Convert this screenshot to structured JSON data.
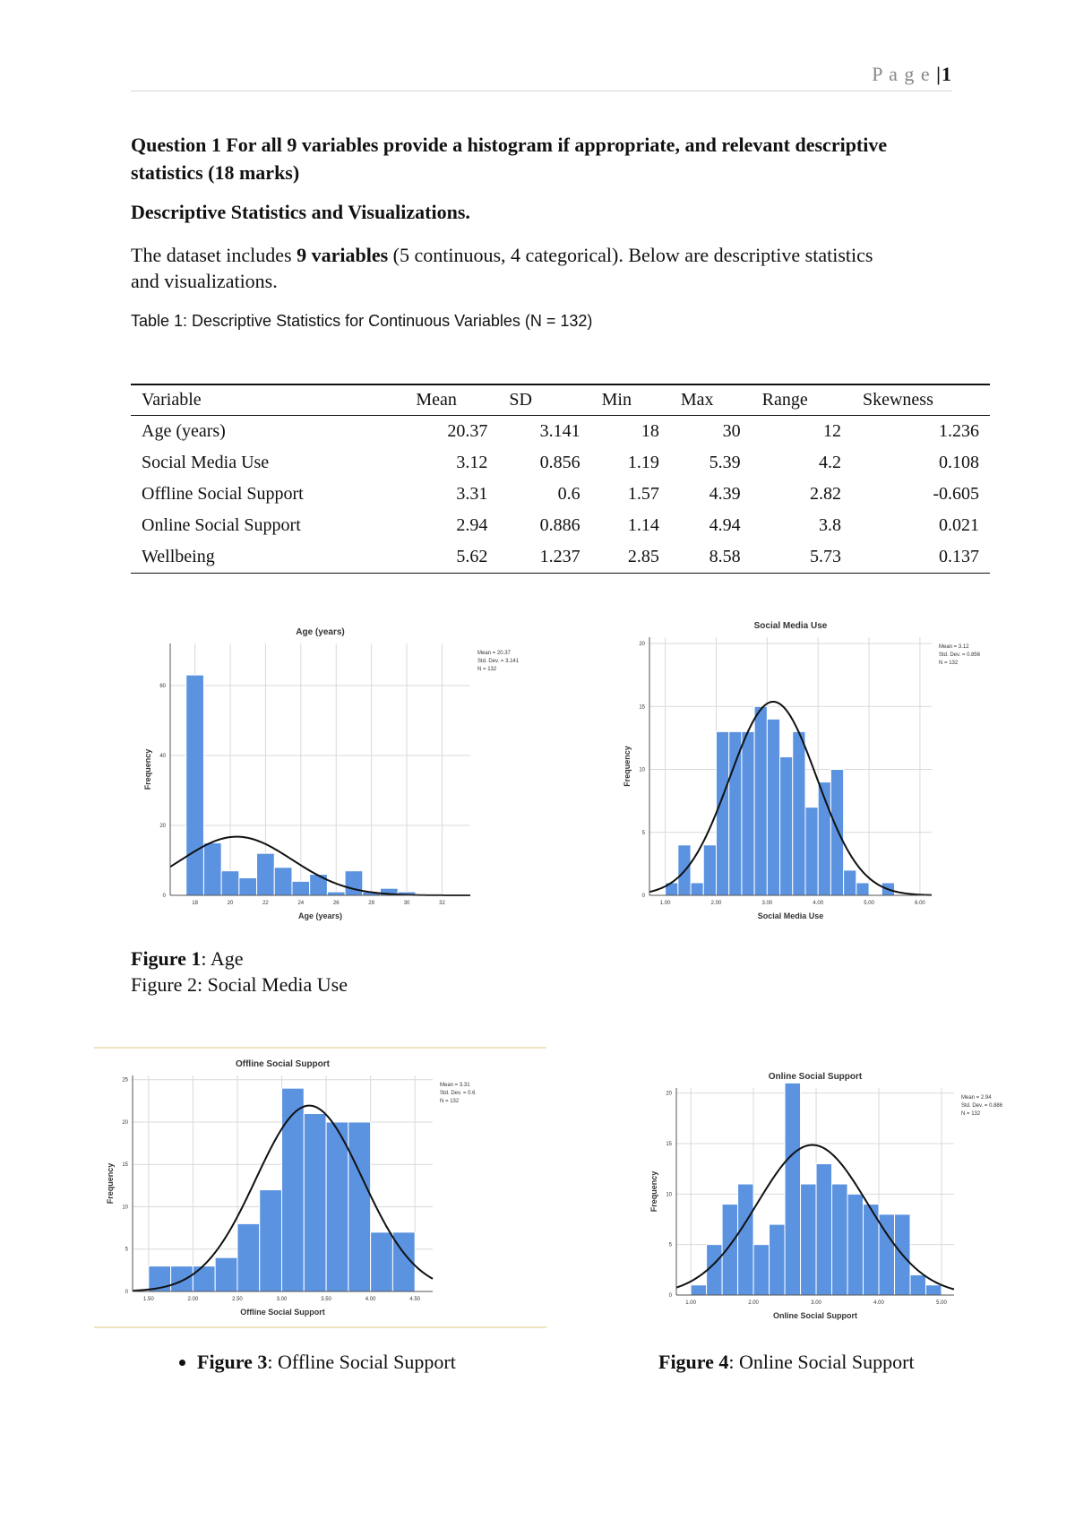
{
  "header": {
    "text": "P a g e",
    "separator": "|",
    "number": "1"
  },
  "question": "Question 1 For all 9 variables provide a histogram if appropriate, and relevant descriptive statistics (18 marks)",
  "heading": "Descriptive Statistics and Visualizations.",
  "paragraph": [
    "The dataset includes ",
    "9 variables",
    " (5 continuous, 4 categorical). Below are descriptive statistics and visualizations."
  ],
  "table": {
    "caption": "Table 1: Descriptive Statistics for Continuous Variables (N = 132)",
    "columns": [
      "Variable",
      "Mean",
      "SD",
      "Min",
      "Max",
      "Range",
      "Skewness"
    ],
    "rows": [
      [
        "Age (years)",
        20.37,
        3.141,
        18,
        30,
        12,
        1.236
      ],
      [
        "Social Media Use",
        3.12,
        0.856,
        1.19,
        5.39,
        4.2,
        0.108
      ],
      [
        "Offline Social Support",
        3.31,
        0.6,
        1.57,
        4.39,
        2.82,
        -0.605
      ],
      [
        "Online Social Support",
        2.94,
        0.886,
        1.14,
        4.94,
        3.8,
        0.021
      ],
      [
        "Wellbeing",
        5.62,
        1.237,
        2.85,
        8.58,
        5.73,
        0.137
      ]
    ]
  },
  "figures": [
    {
      "type": "histogram",
      "title": "Age (years)",
      "xlabel": "Age (years)",
      "ylabel": "Frequency",
      "color": "#5b93e0",
      "bins": [
        17.5,
        18.5,
        19.5,
        20.5,
        21.5,
        22.5,
        23.5,
        24.5,
        25.5,
        26.5,
        27.5,
        28.5,
        29.5,
        30.5
      ],
      "counts": [
        63,
        15,
        7,
        5,
        12,
        8,
        4,
        6,
        1,
        7,
        1,
        2,
        1
      ],
      "xlim": [
        16.6,
        33.6
      ],
      "ylim": [
        0,
        72
      ],
      "xticks": [
        18,
        20,
        22,
        24,
        26,
        28,
        30,
        32
      ],
      "yticks": [
        0,
        20,
        40,
        60
      ],
      "stats": [
        {
          "label": "Mean =",
          "value": 20.37
        },
        {
          "label": "Std. Dev. =",
          "value": 3.141
        },
        {
          "label": "N =",
          "value": 132
        }
      ]
    },
    {
      "type": "histogram",
      "title": "Social Media Use",
      "xlabel": "Social Media Use",
      "ylabel": "Frequency",
      "color": "#5b93e0",
      "bins": [
        1.0,
        1.25,
        1.5,
        1.75,
        2.0,
        2.25,
        2.5,
        2.75,
        3.0,
        3.25,
        3.5,
        3.75,
        4.0,
        4.25,
        4.5,
        4.75,
        5.0,
        5.25,
        5.5
      ],
      "counts": [
        1,
        4,
        1,
        4,
        13,
        13,
        13,
        15,
        14,
        11,
        13,
        7,
        9,
        10,
        2,
        1,
        0,
        1
      ],
      "xlim": [
        0.69,
        6.23
      ],
      "ylim": [
        0,
        20.5
      ],
      "xticks": [
        {
          "value": 1,
          "label": "1.00"
        },
        {
          "value": 2,
          "label": "2.00"
        },
        {
          "value": 3,
          "label": "3.00"
        },
        {
          "value": 4,
          "label": "4.00"
        },
        {
          "value": 5,
          "label": "5.00"
        },
        {
          "value": 6,
          "label": "6.00"
        }
      ],
      "yticks": [
        0,
        5,
        10,
        15,
        20
      ],
      "stats": [
        {
          "label": "Mean =",
          "value": 3.12
        },
        {
          "label": "Std. Dev. =",
          "value": 0.856
        },
        {
          "label": "N =",
          "value": 132
        }
      ]
    },
    {
      "type": "histogram",
      "title": "Offline Social Support",
      "xlabel": "Offline Social Support",
      "ylabel": "Frequency",
      "color": "#5b93e0",
      "bins": [
        1.5,
        1.75,
        2.0,
        2.25,
        2.5,
        2.75,
        3.0,
        3.25,
        3.5,
        3.75,
        4.0,
        4.25,
        4.5
      ],
      "counts": [
        3,
        3,
        3,
        4,
        8,
        12,
        24,
        21,
        20,
        20,
        7,
        7
      ],
      "xlim": [
        1.32,
        4.7
      ],
      "ylim": [
        0,
        25.5
      ],
      "xticks": [
        {
          "value": 1.5,
          "label": "1.50"
        },
        {
          "value": 2,
          "label": "2.00"
        },
        {
          "value": 2.5,
          "label": "2.50"
        },
        {
          "value": 3,
          "label": "3.00"
        },
        {
          "value": 3.5,
          "label": "3.50"
        },
        {
          "value": 4,
          "label": "4.00"
        },
        {
          "value": 4.5,
          "label": "4.50"
        }
      ],
      "yticks": [
        0,
        5,
        10,
        15,
        20,
        25
      ],
      "stats": [
        {
          "label": "Mean =",
          "value": 3.31
        },
        {
          "label": "Std. Dev. =",
          "value": 0.6
        },
        {
          "label": "N =",
          "value": 132
        }
      ]
    },
    {
      "type": "histogram",
      "title": "Online Social Support",
      "xlabel": "Online Social Support",
      "ylabel": "Frequency",
      "color": "#5b93e0",
      "bins": [
        1.0,
        1.25,
        1.5,
        1.75,
        2.0,
        2.25,
        2.5,
        2.75,
        3.0,
        3.25,
        3.5,
        3.75,
        4.0,
        4.25,
        4.5,
        4.75,
        5.0
      ],
      "counts": [
        1,
        5,
        9,
        11,
        5,
        7,
        21,
        11,
        13,
        11,
        10,
        9,
        8,
        8,
        2,
        1
      ],
      "xlim": [
        0.77,
        5.2
      ],
      "ylim": [
        0,
        20.5
      ],
      "xticks": [
        {
          "value": 1,
          "label": "1.00"
        },
        {
          "value": 2,
          "label": "2.00"
        },
        {
          "value": 3,
          "label": "3.00"
        },
        {
          "value": 4,
          "label": "4.00"
        },
        {
          "value": 5,
          "label": "5.00"
        }
      ],
      "yticks": [
        0,
        5,
        10,
        15,
        20
      ],
      "stats": [
        {
          "label": "Mean =",
          "value": 2.94
        },
        {
          "label": "Std. Dev. =",
          "value": 0.886
        },
        {
          "label": "N =",
          "value": 132
        }
      ]
    }
  ],
  "captions": [
    {
      "label": "Figure 1",
      "text": ": Age"
    },
    {
      "text": "Figure 2: Social Media Use"
    },
    {
      "label": "Figure 3",
      "text": ": Offline Social Support"
    },
    {
      "label": "Figure 4",
      "text": ": Online Social Support"
    }
  ]
}
